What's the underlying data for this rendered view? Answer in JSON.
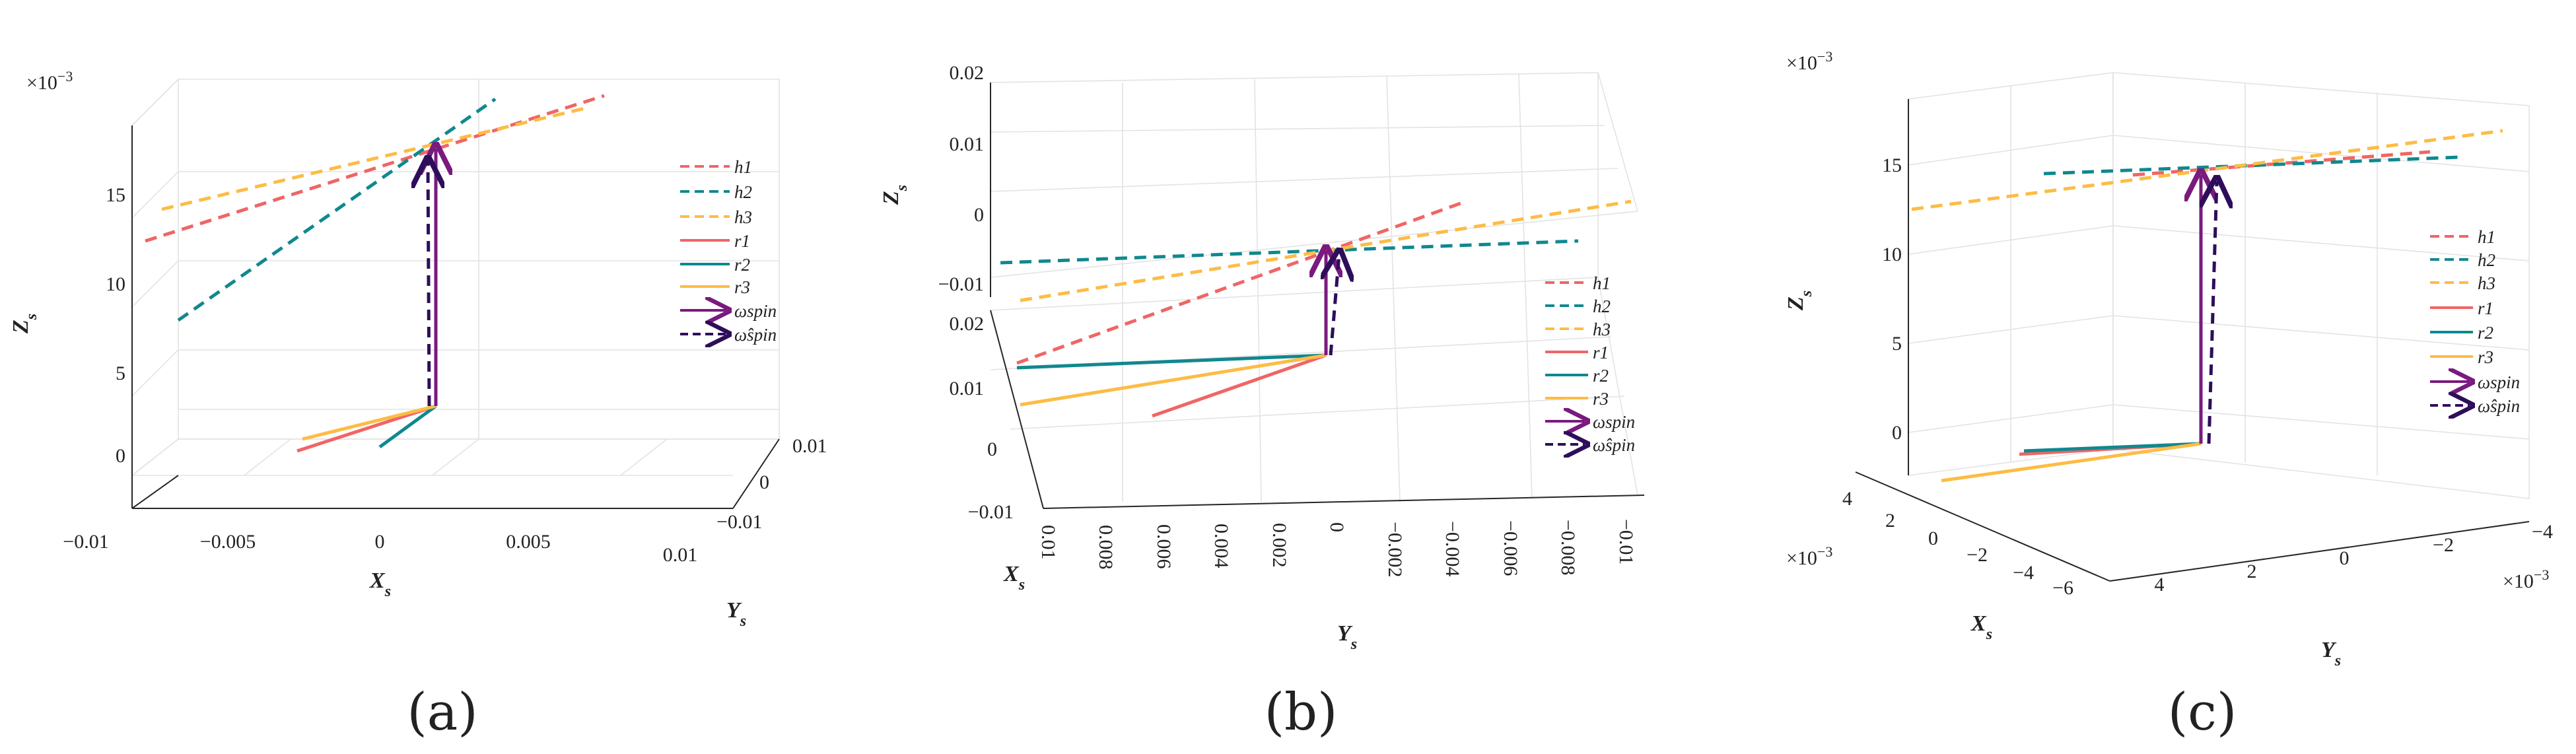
{
  "colors": {
    "h1": "#f06566",
    "h2": "#10888f",
    "h3": "#fdbc45",
    "r1": "#f06566",
    "r2": "#10888f",
    "r3": "#fdbc45",
    "omega": "#7a1a7f",
    "omega_hat": "#2e0e5a"
  },
  "chart_data": [
    {
      "type": "line3d",
      "panel_label": "(a)",
      "xlabel": "X",
      "xlabel_sub": "s",
      "ylabel": "Y",
      "ylabel_sub": "s",
      "zlabel": "Z",
      "zlabel_sub": "s",
      "z_exponent": "×10",
      "z_exponent_power": "−3",
      "x_ticks": [
        "−0.01",
        "−0.005",
        "0",
        "0.005",
        "0.01"
      ],
      "y_ticks": [
        "0.01",
        "0",
        "−0.01"
      ],
      "z_ticks": [
        "15",
        "10",
        "5",
        "0"
      ],
      "legend": [
        "h1",
        "h2",
        "h3",
        "r1",
        "r2",
        "r3",
        "ωspin",
        "ω̂spin"
      ],
      "series": [
        {
          "name": "h1",
          "style": "dashed"
        },
        {
          "name": "h2",
          "style": "dashed"
        },
        {
          "name": "h3",
          "style": "dashed"
        },
        {
          "name": "r1",
          "style": "solid"
        },
        {
          "name": "r2",
          "style": "solid"
        },
        {
          "name": "r3",
          "style": "solid"
        },
        {
          "name": "ωspin",
          "style": "arrow"
        },
        {
          "name": "ω̂spin",
          "style": "dashed-arrow"
        }
      ]
    },
    {
      "type": "line3d",
      "panel_label": "(b)",
      "xlabel": "X",
      "xlabel_sub": "s",
      "ylabel": "Y",
      "ylabel_sub": "s",
      "zlabel": "Z",
      "zlabel_sub": "s",
      "z_ticks": [
        "0.02",
        "0.01",
        "0",
        "−0.01"
      ],
      "x_ticks": [
        "0.02",
        "0.01",
        "0",
        "−0.01"
      ],
      "y_ticks": [
        "0.01",
        "0.008",
        "0.006",
        "0.004",
        "0.002",
        "0",
        "−0.002",
        "−0.004",
        "−0.006",
        "−0.008",
        "−0.01"
      ],
      "legend": [
        "h1",
        "h2",
        "h3",
        "r1",
        "r2",
        "r3",
        "ωspin",
        "ω̂spin"
      ],
      "series": [
        {
          "name": "h1",
          "style": "dashed"
        },
        {
          "name": "h2",
          "style": "dashed"
        },
        {
          "name": "h3",
          "style": "dashed"
        },
        {
          "name": "r1",
          "style": "solid"
        },
        {
          "name": "r2",
          "style": "solid"
        },
        {
          "name": "r3",
          "style": "solid"
        },
        {
          "name": "ωspin",
          "style": "arrow"
        },
        {
          "name": "ω̂spin",
          "style": "dashed-arrow"
        }
      ]
    },
    {
      "type": "line3d",
      "panel_label": "(c)",
      "xlabel": "X",
      "xlabel_sub": "s",
      "ylabel": "Y",
      "ylabel_sub": "s",
      "zlabel": "Z",
      "zlabel_sub": "s",
      "z_exponent": "×10",
      "z_exponent_power": "−3",
      "x_exponent": "×10",
      "x_exponent_power": "−3",
      "y_exponent": "×10",
      "y_exponent_power": "−3",
      "z_ticks": [
        "15",
        "10",
        "5",
        "0"
      ],
      "x_ticks": [
        "4",
        "2",
        "0",
        "−2",
        "−4",
        "−6"
      ],
      "y_ticks": [
        "4",
        "2",
        "0",
        "−2",
        "−4"
      ],
      "legend": [
        "h1",
        "h2",
        "h3",
        "r1",
        "r2",
        "r3",
        "ωspin",
        "ω̂spin"
      ],
      "series": [
        {
          "name": "h1",
          "style": "dashed"
        },
        {
          "name": "h2",
          "style": "dashed"
        },
        {
          "name": "h3",
          "style": "dashed"
        },
        {
          "name": "r1",
          "style": "solid"
        },
        {
          "name": "r2",
          "style": "solid"
        },
        {
          "name": "r3",
          "style": "solid"
        },
        {
          "name": "ωspin",
          "style": "arrow"
        },
        {
          "name": "ω̂spin",
          "style": "dashed-arrow"
        }
      ]
    }
  ]
}
